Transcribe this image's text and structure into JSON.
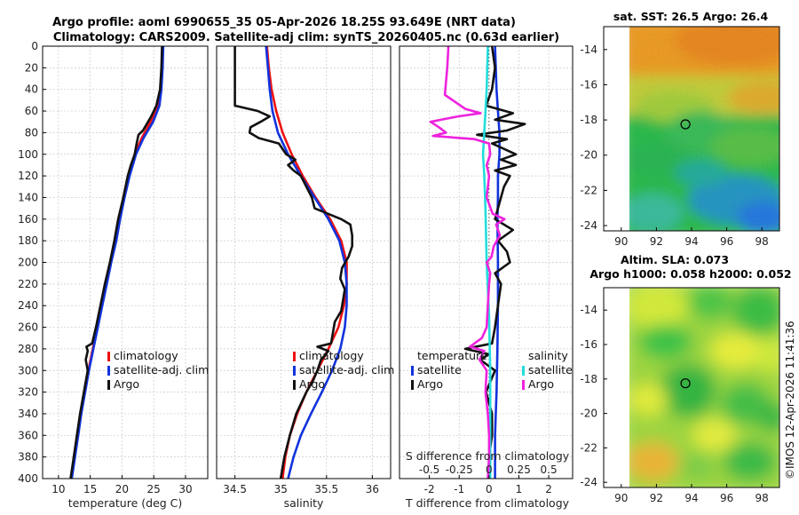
{
  "figure": {
    "title_line1": "Argo profile: aoml 6990655_35 05-Apr-2026 18.25S 93.649E (NRT data)",
    "title_line2": "Climatology: CARS2009. Satellite-adj clim: synTS_20260405.nc (0.63d earlier)",
    "copyright": "©IMOS 12-Apr-2026 11:41:36"
  },
  "colors": {
    "climatology": "#ee1111",
    "satellite": "#1133dd",
    "argo": "#111111",
    "salinity_satellite": "#22dddd",
    "salinity_argo": "#ee22dd",
    "grid": "#c8c8c8"
  },
  "chart_data": [
    {
      "id": "temperature",
      "type": "line",
      "xlabel": "temperature (deg C)",
      "ylabel": "",
      "xlim": [
        7.5,
        33.5
      ],
      "ylim": [
        0,
        400
      ],
      "xticks": [
        10,
        15,
        20,
        25,
        30
      ],
      "xtick_labels": [
        "10",
        "15",
        "20",
        "25",
        "30"
      ],
      "yticks": [
        0,
        20,
        40,
        60,
        80,
        100,
        120,
        140,
        160,
        180,
        200,
        220,
        240,
        260,
        280,
        300,
        320,
        340,
        360,
        380,
        400
      ],
      "ytick_labels": [
        "0",
        "20",
        "40",
        "60",
        "80",
        "100",
        "120",
        "140",
        "160",
        "180",
        "200",
        "220",
        "240",
        "260",
        "280",
        "300",
        "320",
        "340",
        "360",
        "380",
        "400"
      ],
      "legend": {
        "position": "bottom-right",
        "entries": [
          "climatology",
          "satellite-adj. clim",
          "Argo"
        ]
      },
      "series": [
        {
          "name": "climatology",
          "depth": [
            0,
            20,
            40,
            55,
            70,
            85,
            100,
            120,
            140,
            160,
            180,
            200,
            220,
            240,
            260,
            280,
            300,
            320,
            340,
            360,
            380,
            400
          ],
          "values": [
            26.4,
            26.3,
            26.1,
            25.7,
            24.5,
            23.1,
            22.0,
            21.1,
            20.3,
            19.6,
            19.0,
            18.2,
            17.5,
            16.8,
            16.1,
            15.4,
            14.7,
            14.1,
            13.5,
            13.0,
            12.5,
            12.0
          ]
        },
        {
          "name": "satellite-adj. clim",
          "depth": [
            0,
            20,
            40,
            55,
            70,
            85,
            100,
            120,
            140,
            160,
            180,
            200,
            220,
            240,
            260,
            280,
            300,
            320,
            340,
            360,
            380,
            400
          ],
          "values": [
            26.5,
            26.4,
            26.2,
            25.9,
            24.9,
            23.4,
            22.2,
            21.2,
            20.4,
            19.7,
            19.1,
            18.3,
            17.6,
            16.9,
            16.2,
            15.5,
            14.8,
            14.2,
            13.6,
            13.1,
            12.6,
            12.1
          ]
        },
        {
          "name": "Argo",
          "depth": [
            0,
            20,
            40,
            55,
            65,
            72,
            78,
            82,
            90,
            100,
            110,
            120,
            140,
            160,
            180,
            200,
            220,
            240,
            260,
            275,
            278,
            282,
            290,
            300,
            320,
            340,
            360,
            380,
            400
          ],
          "values": [
            26.3,
            26.2,
            26.0,
            25.4,
            24.6,
            23.9,
            23.3,
            22.6,
            22.3,
            22.0,
            21.4,
            20.9,
            20.2,
            19.4,
            18.8,
            18.1,
            17.3,
            16.6,
            15.9,
            15.3,
            14.4,
            14.6,
            14.3,
            14.6,
            14.0,
            13.4,
            12.9,
            12.4,
            11.9
          ]
        }
      ]
    },
    {
      "id": "salinity",
      "type": "line",
      "xlabel": "salinity",
      "ylabel": "",
      "xlim": [
        34.3,
        36.2
      ],
      "ylim": [
        0,
        400
      ],
      "xticks": [
        34.5,
        35,
        35.5,
        36
      ],
      "xtick_labels": [
        "34.5",
        "35",
        "35.5",
        "36"
      ],
      "legend": {
        "position": "bottom-right",
        "entries": [
          "climatology",
          "satellite-adj. clim",
          "Argo"
        ]
      },
      "series": [
        {
          "name": "climatology",
          "depth": [
            0,
            20,
            40,
            60,
            80,
            100,
            120,
            140,
            160,
            180,
            200,
            220,
            240,
            260,
            280,
            300,
            320,
            340,
            360,
            380,
            400
          ],
          "values": [
            34.85,
            34.87,
            34.9,
            34.95,
            35.02,
            35.12,
            35.24,
            35.38,
            35.54,
            35.66,
            35.72,
            35.72,
            35.69,
            35.63,
            35.52,
            35.4,
            35.28,
            35.18,
            35.1,
            35.05,
            35.02
          ]
        },
        {
          "name": "satellite-adj. clim",
          "depth": [
            0,
            20,
            40,
            60,
            80,
            100,
            120,
            140,
            160,
            180,
            200,
            220,
            240,
            260,
            280,
            300,
            320,
            340,
            360,
            380,
            400
          ],
          "values": [
            34.84,
            34.86,
            34.88,
            34.91,
            34.97,
            35.08,
            35.22,
            35.37,
            35.52,
            35.64,
            35.7,
            35.72,
            35.72,
            35.7,
            35.65,
            35.56,
            35.45,
            35.33,
            35.22,
            35.14,
            35.08
          ]
        },
        {
          "name": "Argo",
          "depth": [
            0,
            10,
            25,
            40,
            55,
            60,
            65,
            70,
            75,
            80,
            85,
            90,
            100,
            105,
            110,
            115,
            120,
            140,
            150,
            160,
            165,
            175,
            185,
            195,
            205,
            215,
            225,
            235,
            245,
            255,
            265,
            275,
            278,
            282,
            290,
            300,
            310,
            320,
            340,
            360,
            380,
            400
          ],
          "values": [
            34.5,
            34.5,
            34.5,
            34.5,
            34.5,
            34.75,
            34.88,
            34.78,
            34.67,
            34.66,
            34.76,
            34.98,
            35.06,
            35.16,
            35.08,
            35.14,
            35.22,
            35.34,
            35.37,
            35.66,
            35.76,
            35.78,
            35.78,
            35.74,
            35.67,
            35.65,
            35.7,
            35.68,
            35.66,
            35.59,
            35.57,
            35.55,
            35.4,
            35.52,
            35.44,
            35.4,
            35.35,
            35.28,
            35.17,
            35.1,
            35.04,
            35.0
          ]
        }
      ]
    },
    {
      "id": "differences",
      "type": "line",
      "xlabel": "T difference from climatology",
      "xlim": [
        -3.0,
        2.8
      ],
      "ylim": [
        0,
        400
      ],
      "xticks": [
        -2,
        -1,
        0,
        1,
        2
      ],
      "xtick_labels": [
        "-2",
        "-1",
        "0",
        "1",
        "2"
      ],
      "secondary_xlabel": "S difference from climatology",
      "secondary_xticks": [
        -0.5,
        -0.25,
        0,
        0.25,
        0.5
      ],
      "secondary_xtick_labels": [
        "-0.5",
        "-0.25",
        "0",
        "0.25",
        "0.5"
      ],
      "legend": {
        "position": "bottom",
        "groups": [
          {
            "title": "temperature",
            "entries": [
              "satellite",
              "Argo"
            ]
          },
          {
            "title": "salinity",
            "entries": [
              "satellite",
              "Argo"
            ]
          }
        ]
      },
      "series": [
        {
          "name": "temperature satellite",
          "depth": [
            0,
            40,
            60,
            80,
            100,
            120,
            140,
            160,
            200,
            240,
            280,
            320,
            360,
            400
          ],
          "values": [
            0.2,
            0.25,
            0.3,
            0.35,
            0.35,
            0.3,
            0.3,
            0.28,
            0.3,
            0.3,
            0.28,
            0.25,
            0.2,
            0.2
          ]
        },
        {
          "name": "temperature Argo",
          "depth": [
            0,
            20,
            40,
            55,
            62,
            68,
            72,
            78,
            82,
            86,
            90,
            95,
            100,
            105,
            110,
            115,
            120,
            130,
            140,
            150,
            160,
            170,
            180,
            190,
            200,
            210,
            220,
            240,
            260,
            275,
            280,
            285,
            290,
            300,
            320,
            340,
            360,
            380,
            400
          ],
          "values": [
            0.1,
            0.2,
            0.1,
            -0.1,
            0.8,
            0.2,
            1.2,
            0.6,
            -0.4,
            0.6,
            0.1,
            0.5,
            0.9,
            0.4,
            0.9,
            0.2,
            0.7,
            0.5,
            0.4,
            0.3,
            0.2,
            0.8,
            0.3,
            0.6,
            0.7,
            0.2,
            0.4,
            0.3,
            0.2,
            0.1,
            -0.8,
            0.0,
            -0.3,
            0.2,
            -0.1,
            0.1,
            0.1,
            0.0,
            0.0
          ]
        },
        {
          "name": "salinity satellite",
          "depth": [
            0,
            40,
            80,
            100,
            120,
            150,
            200,
            250,
            300,
            350,
            400
          ],
          "values": [
            -0.01,
            -0.02,
            -0.04,
            -0.05,
            -0.04,
            -0.03,
            -0.02,
            0.0,
            0.01,
            0.01,
            0.01
          ]
        },
        {
          "name": "salinity Argo",
          "depth": [
            0,
            20,
            45,
            58,
            62,
            65,
            70,
            75,
            80,
            83,
            86,
            90,
            100,
            110,
            120,
            140,
            155,
            160,
            165,
            175,
            185,
            195,
            200,
            210,
            220,
            240,
            260,
            270,
            278,
            282,
            290,
            300,
            320,
            340,
            360,
            380,
            400
          ],
          "values": [
            -0.34,
            -0.35,
            -0.37,
            -0.2,
            -0.07,
            -0.26,
            -0.49,
            -0.42,
            -0.36,
            -0.47,
            -0.12,
            0.0,
            0.01,
            -0.02,
            0.0,
            -0.02,
            0.03,
            0.13,
            0.06,
            0.09,
            0.04,
            0.02,
            -0.02,
            0.01,
            0.0,
            -0.01,
            -0.02,
            -0.06,
            -0.16,
            -0.04,
            -0.08,
            -0.02,
            -0.03,
            -0.01,
            0.0,
            0.0,
            -0.01
          ]
        }
      ]
    },
    {
      "id": "sst_map",
      "type": "heatmap",
      "title": "sat. SST: 26.5 Argo: 26.4",
      "xlim": [
        89,
        99
      ],
      "ylim": [
        -24.3,
        -12.7
      ],
      "xticks": [
        90,
        92,
        94,
        96,
        98
      ],
      "xtick_labels": [
        "90",
        "92",
        "94",
        "96",
        "98"
      ],
      "yticks": [
        -14,
        -16,
        -18,
        -20,
        -22,
        -24
      ],
      "ytick_labels": [
        "-14",
        "-16",
        "-18",
        "-20",
        "-22",
        "-24"
      ],
      "data_extent": {
        "lon": [
          90,
          99
        ],
        "lat": [
          -24.3,
          -12.7
        ]
      },
      "argo_position": {
        "lon": 93.649,
        "lat": -18.25
      }
    },
    {
      "id": "sla_map",
      "type": "heatmap",
      "title": "Altim. SLA: 0.073",
      "subtitle": "Argo h1000: 0.058 h2000: 0.052",
      "xlim": [
        89,
        99
      ],
      "ylim": [
        -24.3,
        -12.7
      ],
      "xticks": [
        90,
        92,
        94,
        96,
        98
      ],
      "xtick_labels": [
        "90",
        "92",
        "94",
        "96",
        "98"
      ],
      "yticks": [
        -14,
        -16,
        -18,
        -20,
        -22,
        -24
      ],
      "ytick_labels": [
        "-14",
        "-16",
        "-18",
        "-20",
        "-22",
        "-24"
      ],
      "data_extent": {
        "lon": [
          90,
          99
        ],
        "lat": [
          -24.3,
          -12.7
        ]
      },
      "argo_position": {
        "lon": 93.649,
        "lat": -18.25
      }
    }
  ]
}
